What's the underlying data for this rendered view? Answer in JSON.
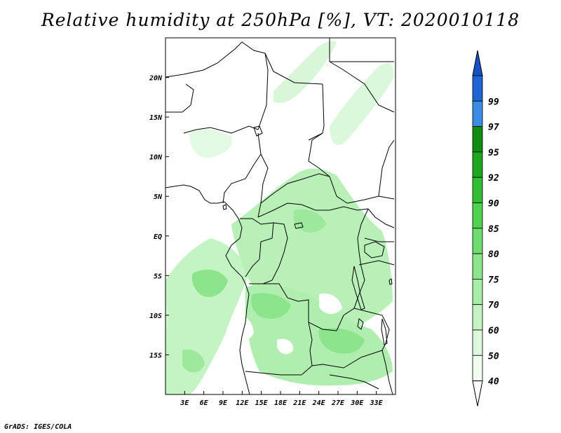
{
  "title": "Relative humidity at 250hPa [%], VT: 2020010118",
  "footer": "GrADS: IGES/COLA",
  "map": {
    "lon_range": [
      0,
      36
    ],
    "lat_range": [
      -20,
      25
    ],
    "lon_ticks": [
      {
        "value": 3,
        "label": "3E"
      },
      {
        "value": 6,
        "label": "6E"
      },
      {
        "value": 9,
        "label": "9E"
      },
      {
        "value": 12,
        "label": "12E"
      },
      {
        "value": 15,
        "label": "15E"
      },
      {
        "value": 18,
        "label": "18E"
      },
      {
        "value": 21,
        "label": "21E"
      },
      {
        "value": 24,
        "label": "24E"
      },
      {
        "value": 27,
        "label": "27E"
      },
      {
        "value": 30,
        "label": "30E"
      },
      {
        "value": 33,
        "label": "33E"
      }
    ],
    "lat_ticks": [
      {
        "value": 20,
        "label": "20N"
      },
      {
        "value": 15,
        "label": "15N"
      },
      {
        "value": 10,
        "label": "10N"
      },
      {
        "value": 5,
        "label": "5N"
      },
      {
        "value": 0,
        "label": "EQ"
      },
      {
        "value": -5,
        "label": "5S"
      },
      {
        "value": -10,
        "label": "10S"
      },
      {
        "value": -15,
        "label": "15S"
      }
    ]
  },
  "colorbar": {
    "levels": [
      {
        "label": "40",
        "color": "#f0fff0"
      },
      {
        "label": "50",
        "color": "#dcf8dc"
      },
      {
        "label": "60",
        "color": "#c4f4c4"
      },
      {
        "label": "70",
        "color": "#a8eca8"
      },
      {
        "label": "75",
        "color": "#8ce48c"
      },
      {
        "label": "80",
        "color": "#6edc6e"
      },
      {
        "label": "85",
        "color": "#50d250"
      },
      {
        "label": "90",
        "color": "#34be34"
      },
      {
        "label": "92",
        "color": "#1ea61e"
      },
      {
        "label": "95",
        "color": "#108c10"
      },
      {
        "label": "97",
        "color": "#3c8ce6"
      },
      {
        "label": "99",
        "color": "#1e64d2"
      }
    ],
    "top_color": "#1450c8",
    "bottom_color": "#ffffff"
  }
}
